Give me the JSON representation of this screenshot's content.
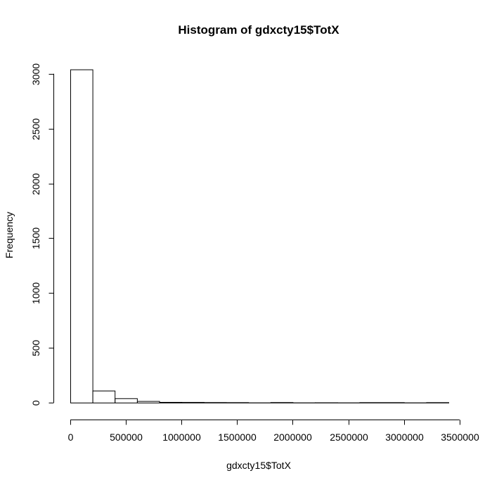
{
  "chart_data": {
    "type": "bar",
    "title": "Histogram of gdxcty15$TotX",
    "xlabel": "gdxcty15$TotX",
    "ylabel": "Frequency",
    "xlim": [
      0,
      3500000
    ],
    "ylim": [
      0,
      3050
    ],
    "grid": false,
    "bin_edges": [
      0,
      200000,
      400000,
      600000,
      800000,
      1000000,
      1200000,
      1400000,
      1600000,
      1800000,
      2000000,
      2200000,
      2400000,
      2600000,
      2800000,
      3000000,
      3200000,
      3400000
    ],
    "values": [
      3040,
      110,
      40,
      15,
      6,
      5,
      4,
      3,
      1,
      4,
      1,
      2,
      1,
      3,
      3,
      1,
      3
    ],
    "x_ticks": [
      0,
      500000,
      1000000,
      1500000,
      2000000,
      2500000,
      3000000,
      3500000
    ],
    "x_tick_labels": [
      "0",
      "500000",
      "1000000",
      "1500000",
      "2000000",
      "2500000",
      "3000000",
      "3500000"
    ],
    "y_ticks": [
      0,
      500,
      1000,
      1500,
      2000,
      2500,
      3000
    ],
    "y_tick_labels": [
      "0",
      "500",
      "1000",
      "1500",
      "2000",
      "2500",
      "3000"
    ]
  }
}
